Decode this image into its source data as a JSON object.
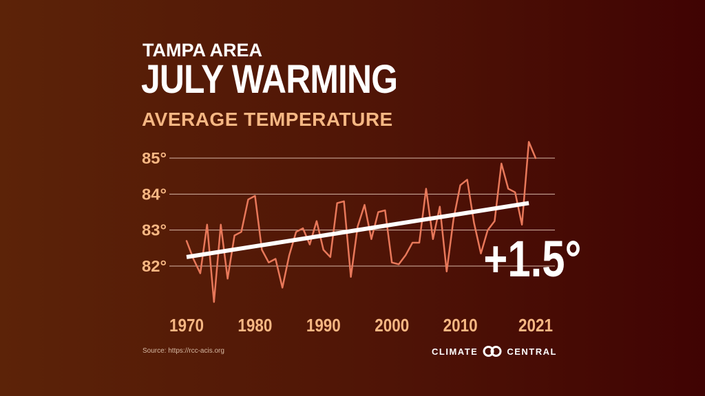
{
  "header": {
    "subtitle": "TAMPA AREA",
    "title": "JULY WARMING",
    "metric": "AVERAGE TEMPERATURE"
  },
  "chart_data": {
    "type": "line",
    "title": "JULY WARMING",
    "subtitle": "TAMPA AREA",
    "ylabel": "AVERAGE TEMPERATURE",
    "xlabel": "",
    "xlim": [
      1970,
      2021
    ],
    "ylim": [
      81,
      85.5
    ],
    "x_ticks": [
      1970,
      1980,
      1990,
      2000,
      2010,
      2021
    ],
    "x_tick_labels": [
      "1970",
      "1980",
      "1990",
      "2000",
      "2010",
      "2021"
    ],
    "y_ticks": [
      82,
      83,
      84,
      85
    ],
    "y_tick_labels": [
      "82°",
      "83°",
      "84°",
      "85°"
    ],
    "grid": true,
    "series": [
      {
        "name": "July average temperature",
        "color": "#e8785a",
        "x": [
          1970,
          1971,
          1972,
          1973,
          1974,
          1975,
          1976,
          1977,
          1978,
          1979,
          1980,
          1981,
          1982,
          1983,
          1984,
          1985,
          1986,
          1987,
          1988,
          1989,
          1990,
          1991,
          1992,
          1993,
          1994,
          1995,
          1996,
          1997,
          1998,
          1999,
          2000,
          2001,
          2002,
          2003,
          2004,
          2005,
          2006,
          2007,
          2008,
          2009,
          2010,
          2011,
          2012,
          2013,
          2014,
          2015,
          2016,
          2017,
          2018,
          2019,
          2020,
          2021
        ],
        "values": [
          82.7,
          82.2,
          81.8,
          83.15,
          81.0,
          83.15,
          81.65,
          82.85,
          82.95,
          83.85,
          83.95,
          82.45,
          82.1,
          82.2,
          81.4,
          82.3,
          82.95,
          83.05,
          82.6,
          83.25,
          82.45,
          82.25,
          83.75,
          83.8,
          81.7,
          83.1,
          83.7,
          82.75,
          83.5,
          83.55,
          82.1,
          82.05,
          82.3,
          82.65,
          82.65,
          84.15,
          82.75,
          83.65,
          81.85,
          83.3,
          84.25,
          84.4,
          83.2,
          82.35,
          83.0,
          83.25,
          84.85,
          84.15,
          84.05,
          83.15,
          85.45,
          85.0
        ]
      },
      {
        "name": "Trend",
        "color": "#ffffff",
        "x": [
          1970,
          2020
        ],
        "values": [
          82.25,
          83.75
        ]
      }
    ],
    "annotations": [
      {
        "text": "+1.5°",
        "x": 2014,
        "y": 82.15
      }
    ]
  },
  "footer": {
    "source": "Source: https://rcc-acis.org",
    "brand_left": "CLIMATE",
    "brand_right": "CENTRAL"
  },
  "colors": {
    "series": "#e8785a",
    "trend": "#ffffff",
    "tick_labels": "#f6b783",
    "grid": "#d9b8a8"
  }
}
